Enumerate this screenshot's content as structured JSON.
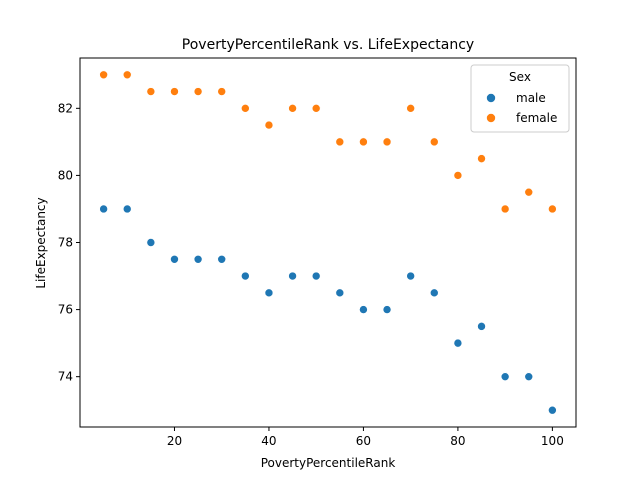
{
  "chart_data": {
    "type": "scatter",
    "title": "PovertyPercentileRank vs. LifeExpectancy",
    "xlabel": "PovertyPercentileRank",
    "ylabel": "LifeExpectancy",
    "xlim": [
      0,
      105
    ],
    "ylim": [
      72.5,
      83.5
    ],
    "xticks": [
      20,
      40,
      60,
      80,
      100
    ],
    "yticks": [
      74,
      76,
      78,
      80,
      82
    ],
    "grid": false,
    "legend": {
      "title": "Sex",
      "placement": "top-right"
    },
    "series": [
      {
        "name": "male",
        "color": "#1f77b4",
        "x": [
          5,
          10,
          15,
          20,
          25,
          30,
          35,
          40,
          45,
          50,
          55,
          60,
          65,
          70,
          75,
          80,
          85,
          90,
          95,
          100
        ],
        "y": [
          79,
          79,
          78,
          77.5,
          77.5,
          77.5,
          77,
          76.5,
          77,
          77,
          76.5,
          76,
          76,
          77,
          76.5,
          75,
          75.5,
          74,
          74,
          73
        ]
      },
      {
        "name": "female",
        "color": "#ff7f0e",
        "x": [
          5,
          10,
          15,
          20,
          25,
          30,
          35,
          40,
          45,
          50,
          55,
          60,
          65,
          70,
          75,
          80,
          85,
          90,
          95,
          100
        ],
        "y": [
          83,
          83,
          82.5,
          82.5,
          82.5,
          82.5,
          82,
          81.5,
          82,
          82,
          81,
          81,
          81,
          82,
          81,
          80,
          80.5,
          79,
          79.5,
          79
        ]
      }
    ]
  }
}
